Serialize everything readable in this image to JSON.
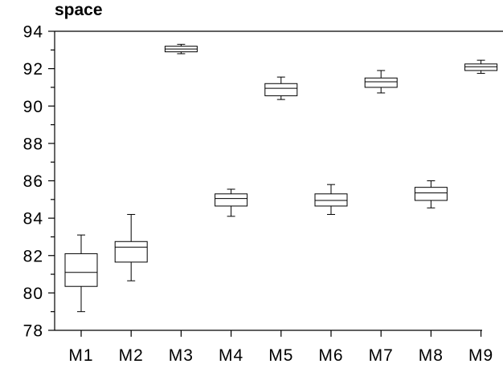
{
  "chart_data": {
    "type": "box",
    "title": "space",
    "xlabel": "",
    "ylabel": "",
    "ylim": [
      78,
      94
    ],
    "yticks": [
      78,
      80,
      82,
      84,
      86,
      88,
      90,
      92,
      94
    ],
    "categories": [
      "M1",
      "M2",
      "M3",
      "M4",
      "M5",
      "M6",
      "M7",
      "M8",
      "M9"
    ],
    "boxes": [
      {
        "label": "M1",
        "min": 79.0,
        "q1": 80.35,
        "median": 81.1,
        "q3": 82.1,
        "max": 83.1
      },
      {
        "label": "M2",
        "min": 80.65,
        "q1": 81.65,
        "median": 82.45,
        "q3": 82.75,
        "max": 84.2
      },
      {
        "label": "M3",
        "min": 92.8,
        "q1": 92.9,
        "median": 93.05,
        "q3": 93.2,
        "max": 93.3
      },
      {
        "label": "M4",
        "min": 84.1,
        "q1": 84.65,
        "median": 85.05,
        "q3": 85.3,
        "max": 85.55
      },
      {
        "label": "M5",
        "min": 90.35,
        "q1": 90.55,
        "median": 90.95,
        "q3": 91.2,
        "max": 91.55
      },
      {
        "label": "M6",
        "min": 84.2,
        "q1": 84.65,
        "median": 84.95,
        "q3": 85.3,
        "max": 85.8
      },
      {
        "label": "M7",
        "min": 90.7,
        "q1": 91.0,
        "median": 91.3,
        "q3": 91.5,
        "max": 91.9
      },
      {
        "label": "M8",
        "min": 84.55,
        "q1": 84.95,
        "median": 85.35,
        "q3": 85.65,
        "max": 86.0
      },
      {
        "label": "M9",
        "min": 91.75,
        "q1": 91.9,
        "median": 92.1,
        "q3": 92.25,
        "max": 92.45
      }
    ],
    "grid": false,
    "legend": "none"
  }
}
